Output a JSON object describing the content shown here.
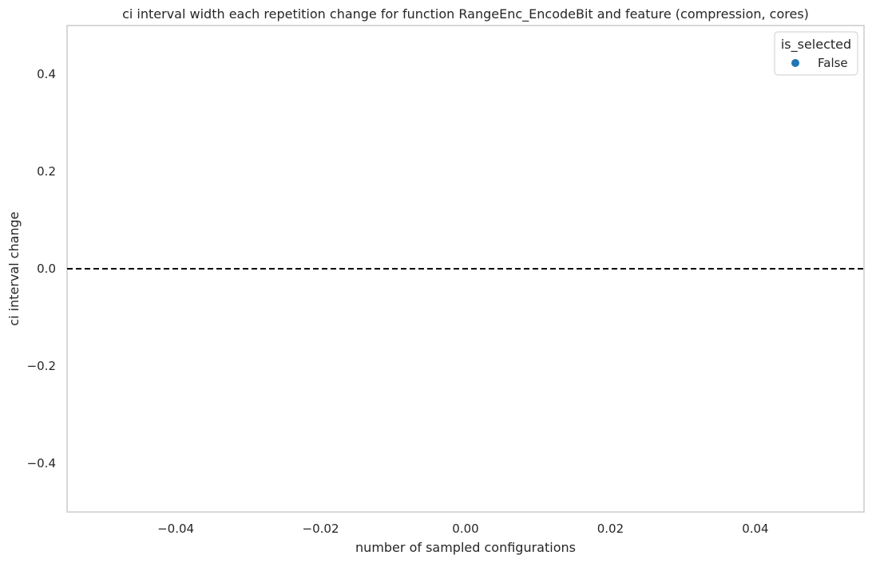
{
  "chart_data": {
    "type": "scatter",
    "title": "ci interval width each repetition change for function RangeEnc_EncodeBit and feature (compression, cores)",
    "xlabel": "number of sampled configurations",
    "ylabel": "ci interval change",
    "xlim": [
      -0.055,
      0.055
    ],
    "ylim": [
      -0.5,
      0.5
    ],
    "x_ticks": [
      -0.04,
      -0.02,
      0.0,
      0.02,
      0.04
    ],
    "x_tick_labels": [
      "−0.04",
      "−0.02",
      "0.00",
      "0.02",
      "0.04"
    ],
    "y_ticks": [
      0.4,
      0.2,
      0.0,
      -0.2,
      -0.4
    ],
    "y_tick_labels": [
      "0.4",
      "0.2",
      "0.0",
      "−0.2",
      "−0.4"
    ],
    "grid": false,
    "reference_line": {
      "y": 0.0,
      "style": "dashed",
      "color": "#000000"
    },
    "legend": {
      "title": "is_selected",
      "placement": "top-right",
      "entries": [
        {
          "label": "False",
          "color": "#1f77b4"
        }
      ]
    },
    "series": [
      {
        "name": "False",
        "color": "#1f77b4",
        "points": []
      }
    ]
  }
}
